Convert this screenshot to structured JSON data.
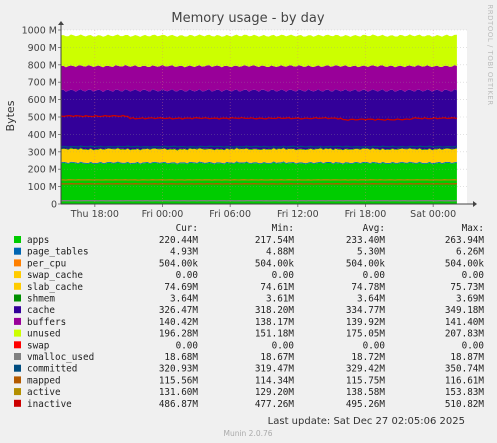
{
  "chart_data": {
    "type": "area",
    "title": "Memory usage - by day",
    "ylabel": "Bytes",
    "side_label": "RRDTOOL / TOBI OETIKER",
    "ylim": [
      0,
      1000000000
    ],
    "y_ticks": [
      {
        "value": 0,
        "label": "0"
      },
      {
        "value": 100000000,
        "label": "100 M"
      },
      {
        "value": 200000000,
        "label": "200 M"
      },
      {
        "value": 300000000,
        "label": "300 M"
      },
      {
        "value": 400000000,
        "label": "400 M"
      },
      {
        "value": 500000000,
        "label": "500 M"
      },
      {
        "value": 600000000,
        "label": "600 M"
      },
      {
        "value": 700000000,
        "label": "700 M"
      },
      {
        "value": 800000000,
        "label": "800 M"
      },
      {
        "value": 900000000,
        "label": "900 M"
      },
      {
        "value": 1000000000,
        "label": "1000 M"
      }
    ],
    "x_ticks": [
      "Thu 18:00",
      "Fri 00:00",
      "Fri 06:00",
      "Fri 12:00",
      "Fri 18:00",
      "Sat 00:00"
    ],
    "x_hours": [
      0,
      6,
      12,
      18,
      24,
      30
    ],
    "x_range_hours": [
      -3,
      33
    ],
    "grid": true,
    "legend_headers": [
      "Cur:",
      "Min:",
      "Avg:",
      "Max:"
    ],
    "series": [
      {
        "name": "apps",
        "color": "#00cc00",
        "kind": "stack",
        "cur": "220.44M",
        "min": "217.54M",
        "avg": "233.40M",
        "max": "263.94M",
        "value_m": 233.4
      },
      {
        "name": "page_tables",
        "color": "#0066b3",
        "kind": "stack",
        "cur": "4.93M",
        "min": "4.88M",
        "avg": "5.30M",
        "max": "6.26M",
        "value_m": 5.3
      },
      {
        "name": "per_cpu",
        "color": "#ff8000",
        "kind": "stack",
        "cur": "504.00k",
        "min": "504.00k",
        "avg": "504.00k",
        "max": "504.00k",
        "value_m": 0.5
      },
      {
        "name": "swap_cache",
        "color": "#ffcc00",
        "kind": "stack",
        "cur": "0.00",
        "min": "0.00",
        "avg": "0.00",
        "max": "0.00",
        "value_m": 0
      },
      {
        "name": "slab_cache",
        "color": "#ffcc00",
        "kind": "stack",
        "cur": "74.69M",
        "min": "74.61M",
        "avg": "74.78M",
        "max": "75.73M",
        "value_m": 74.78
      },
      {
        "name": "shmem",
        "color": "#008f00",
        "kind": "stack",
        "cur": "3.64M",
        "min": "3.61M",
        "avg": "3.64M",
        "max": "3.69M",
        "value_m": 3.64
      },
      {
        "name": "cache",
        "color": "#330099",
        "kind": "stack",
        "cur": "326.47M",
        "min": "318.20M",
        "avg": "334.77M",
        "max": "349.18M",
        "value_m": 334.77
      },
      {
        "name": "buffers",
        "color": "#990099",
        "kind": "stack",
        "cur": "140.42M",
        "min": "138.17M",
        "avg": "139.92M",
        "max": "141.40M",
        "value_m": 139.92
      },
      {
        "name": "unused",
        "color": "#ccff00",
        "kind": "stack",
        "cur": "196.28M",
        "min": "151.18M",
        "avg": "175.05M",
        "max": "207.83M",
        "value_m": 175.05
      },
      {
        "name": "swap",
        "color": "#ff0000",
        "kind": "stack",
        "cur": "0.00",
        "min": "0.00",
        "avg": "0.00",
        "max": "0.00",
        "value_m": 0
      },
      {
        "name": "vmalloc_used",
        "color": "#808080",
        "kind": "line",
        "cur": "18.68M",
        "min": "18.67M",
        "avg": "18.72M",
        "max": "18.87M",
        "value_m": 18.72
      },
      {
        "name": "committed",
        "color": "#004d80",
        "kind": "line",
        "cur": "320.93M",
        "min": "319.47M",
        "avg": "329.42M",
        "max": "350.74M",
        "value_m": 329.42
      },
      {
        "name": "mapped",
        "color": "#b35a00",
        "kind": "line",
        "cur": "115.56M",
        "min": "114.34M",
        "avg": "115.75M",
        "max": "116.61M",
        "value_m": 115.75
      },
      {
        "name": "active",
        "color": "#b38f00",
        "kind": "line",
        "cur": "131.60M",
        "min": "129.20M",
        "avg": "138.58M",
        "max": "153.83M",
        "value_m": 138.58
      },
      {
        "name": "inactive",
        "color": "#cc0000",
        "kind": "line",
        "cur": "486.87M",
        "min": "477.26M",
        "avg": "495.26M",
        "max": "510.82M",
        "value_m": 495.26
      }
    ]
  },
  "footer": {
    "last_update": "Last update: Sat Dec 27 02:05:06 2025",
    "munin_version": "Munin 2.0.76"
  }
}
